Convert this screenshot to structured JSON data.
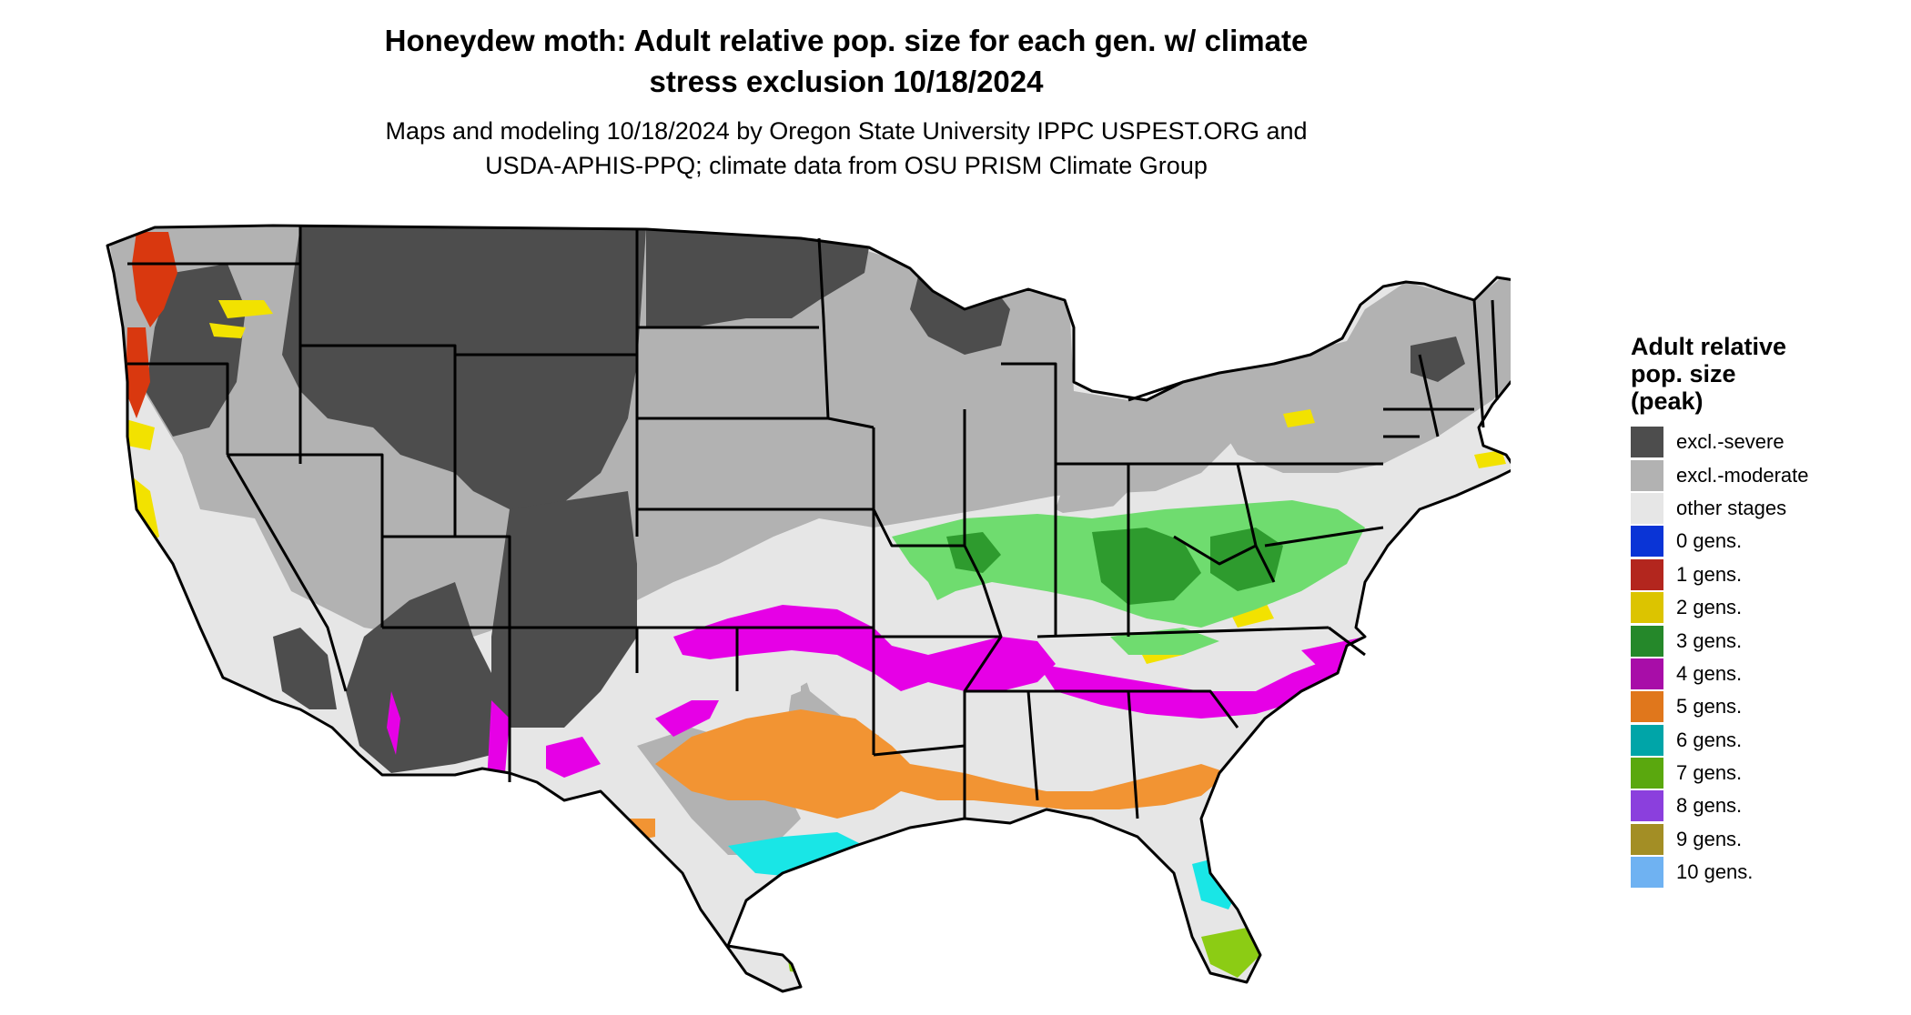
{
  "title": {
    "line1": "Honeydew moth: Adult relative pop. size for each gen. w/ climate",
    "line2": "stress exclusion 10/18/2024"
  },
  "subtitle": {
    "line1": "Maps and modeling 10/18/2024 by Oregon State University IPPC USPEST.ORG and",
    "line2": "USDA-APHIS-PPQ; climate data from OSU PRISM Climate Group"
  },
  "legend": {
    "title_line1": "Adult relative",
    "title_line2": "pop. size",
    "title_line3": "(peak)",
    "items": [
      {
        "label": "excl.-severe",
        "color": "#4d4d4d"
      },
      {
        "label": "excl.-moderate",
        "color": "#b2b2b2"
      },
      {
        "label": "other stages",
        "color": "#e6e6e6"
      },
      {
        "label": "0 gens.",
        "color": "#0a34d6"
      },
      {
        "label": "1 gens.",
        "color": "#b3261e"
      },
      {
        "label": "2 gens.",
        "color": "#dcc400"
      },
      {
        "label": "3 gens.",
        "color": "#25882a"
      },
      {
        "label": "4 gens.",
        "color": "#a80da8"
      },
      {
        "label": "5 gens.",
        "color": "#e0771c"
      },
      {
        "label": "6 gens.",
        "color": "#00a5a8"
      },
      {
        "label": "7 gens.",
        "color": "#5aa80e"
      },
      {
        "label": "8 gens.",
        "color": "#8b3fdd"
      },
      {
        "label": "9 gens.",
        "color": "#a38e25"
      },
      {
        "label": "10 gens.",
        "color": "#6fb2f2"
      }
    ]
  },
  "map_colors": {
    "severe": "#4d4d4d",
    "moderate": "#b2b2b2",
    "other": "#e6e6e6",
    "gen1": "#d9380f",
    "gen2": "#f2e200",
    "gen3": "#6fdc6f",
    "gen3_dark": "#2e9b2e",
    "gen4": "#e600e6",
    "gen5": "#f29433",
    "gen6": "#19e6e6",
    "gen7": "#8ccc14",
    "border": "#000000"
  }
}
